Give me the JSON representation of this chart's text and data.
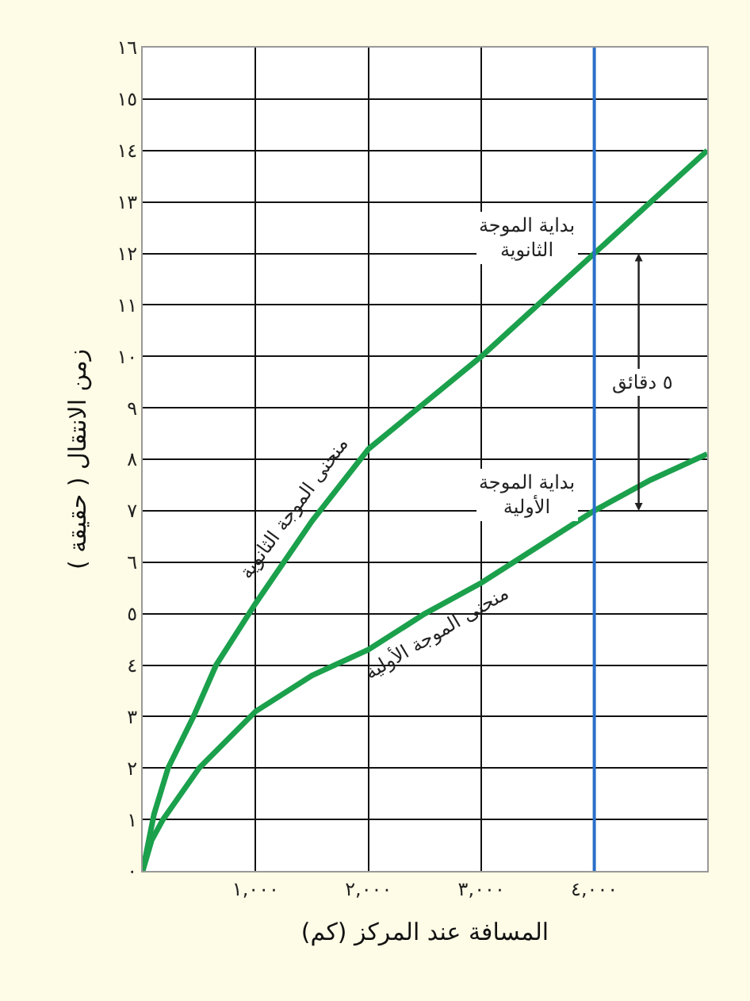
{
  "chart_data": {
    "type": "line",
    "xlabel": "المسافة عند المركز (كم)",
    "ylabel": "زمن الانتقال ( حقيقة )",
    "xlim": [
      0,
      5000
    ],
    "ylim": [
      0,
      16
    ],
    "xticks": [
      {
        "value": 1000,
        "label": "١,٠٠٠"
      },
      {
        "value": 2000,
        "label": "٢,٠٠٠"
      },
      {
        "value": 3000,
        "label": "٣,٠٠٠"
      },
      {
        "value": 4000,
        "label": "٤,٠٠٠"
      }
    ],
    "yticks": [
      {
        "value": 0,
        "label": "٠"
      },
      {
        "value": 1,
        "label": "١"
      },
      {
        "value": 2,
        "label": "٢"
      },
      {
        "value": 3,
        "label": "٣"
      },
      {
        "value": 4,
        "label": "٤"
      },
      {
        "value": 5,
        "label": "٥"
      },
      {
        "value": 6,
        "label": "٦"
      },
      {
        "value": 7,
        "label": "٧"
      },
      {
        "value": 8,
        "label": "٨"
      },
      {
        "value": 9,
        "label": "٩"
      },
      {
        "value": 10,
        "label": "١٠"
      },
      {
        "value": 11,
        "label": "١١"
      },
      {
        "value": 12,
        "label": "١٢"
      },
      {
        "value": 13,
        "label": "١٣"
      },
      {
        "value": 14,
        "label": "١٤"
      },
      {
        "value": 15,
        "label": "١٥"
      },
      {
        "value": 16,
        "label": "١٦"
      }
    ],
    "grid": true,
    "legend": false,
    "marker": "none",
    "line_style": "solid",
    "series": [
      {
        "name": "منحنى الموجة الثانوية",
        "color": "#1ba04c",
        "x": [
          0,
          100,
          225,
          450,
          650,
          1000,
          1500,
          2000,
          2500,
          3000,
          3500,
          4000,
          4500,
          5000
        ],
        "values": [
          0,
          1.1,
          2,
          3,
          4,
          5.2,
          6.8,
          8.2,
          9.1,
          10,
          11,
          12,
          13,
          14
        ]
      },
      {
        "name": "منحنى الموجة الأولية",
        "color": "#1ba04c",
        "x": [
          0,
          80,
          180,
          500,
          1000,
          1500,
          2000,
          2500,
          3000,
          3500,
          4000,
          4500,
          5000
        ],
        "values": [
          0,
          0.6,
          1,
          2,
          3.1,
          3.8,
          4.3,
          5,
          5.6,
          6.3,
          7,
          7.6,
          8.1
        ]
      }
    ],
    "ref_lines": [
      {
        "axis": "x",
        "value": 4000,
        "color": "#2a6fc9"
      }
    ],
    "annotations": [
      {
        "text": "بداية الموجة\nالثانوية",
        "x": 4000,
        "y": 12
      },
      {
        "text": "بداية الموجة\nالأولية",
        "x": 4000,
        "y": 7
      },
      "٥ دقائق"
    ]
  }
}
